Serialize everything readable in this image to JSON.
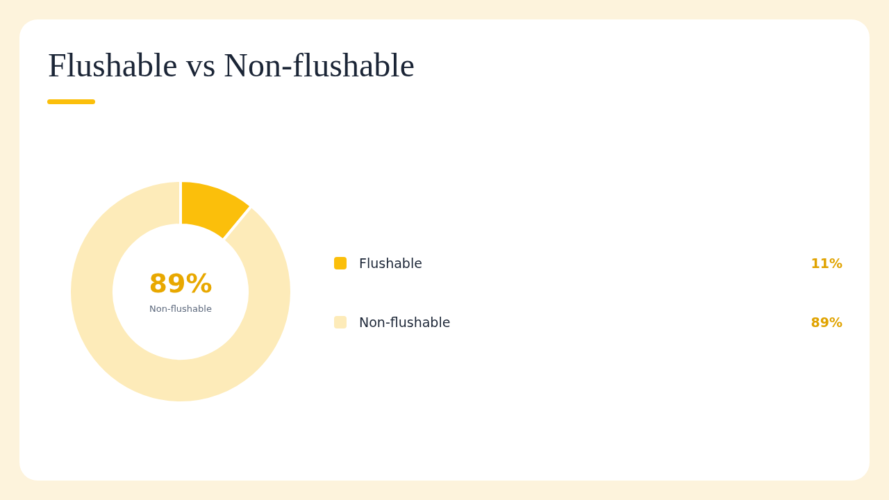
{
  "chart_data": {
    "type": "donut",
    "title": "Flushable vs Non-flushable",
    "categories": [
      "Flushable",
      "Non-flushable"
    ],
    "values": [
      11,
      89
    ],
    "colors": [
      "#fbbf0b",
      "#fdebb9"
    ],
    "value_labels": [
      "11%",
      "89%"
    ],
    "annotations": [
      "89%",
      "Non-flushable"
    ],
    "legend": "right"
  }
}
